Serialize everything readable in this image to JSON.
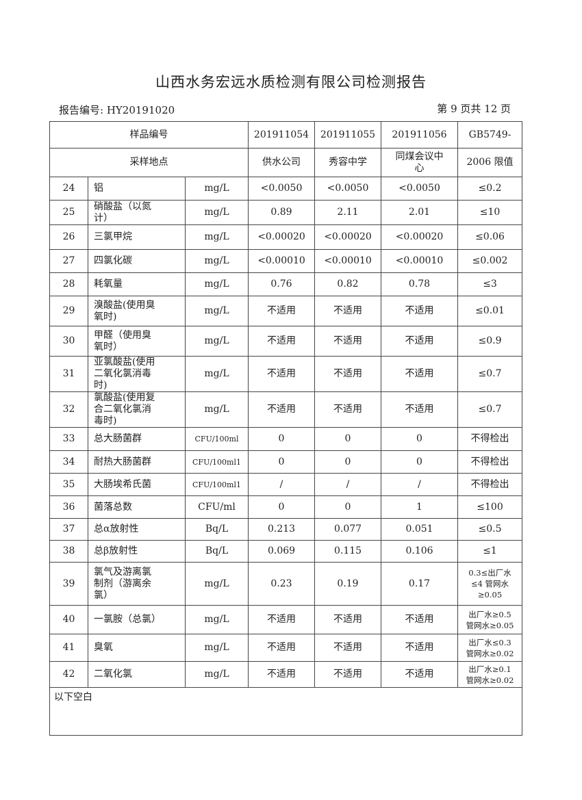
{
  "title": "山西水务宏远水质检测有限公司检测报告",
  "report_no": "报告编号: HY20191020",
  "page_info": "第 9 页共 12 页",
  "header": {
    "sample_no_label": "样品编号",
    "site_label": "采样地点",
    "samples": [
      "201911054",
      "201911055",
      "201911056"
    ],
    "sites": [
      "供水公司",
      "秀容中学",
      "同煤会议中心"
    ],
    "limit_line1": "GB5749-",
    "limit_line2": "2006 限值"
  },
  "rows": [
    {
      "no": "24",
      "item": "铝",
      "unit": "mg/L",
      "v": [
        "<0.0050",
        "<0.0050",
        "<0.0050"
      ],
      "limit": "≤0.2"
    },
    {
      "no": "25",
      "item": "硝酸盐（以氮计）",
      "unit": "mg/L",
      "v": [
        "0.89",
        "2.11",
        "2.01"
      ],
      "limit": "≤10"
    },
    {
      "no": "26",
      "item": "三氯甲烷",
      "unit": "mg/L",
      "v": [
        "<0.00020",
        "<0.00020",
        "<0.00020"
      ],
      "limit": "≤0.06"
    },
    {
      "no": "27",
      "item": "四氯化碳",
      "unit": "mg/L",
      "v": [
        "<0.00010",
        "<0.00010",
        "<0.00010"
      ],
      "limit": "≤0.002"
    },
    {
      "no": "28",
      "item": "耗氧量",
      "unit": "mg/L",
      "v": [
        "0.76",
        "0.82",
        "0.78"
      ],
      "limit": "≤3"
    },
    {
      "no": "29",
      "item": "溴酸盐(使用臭氧时)",
      "unit": "mg/L",
      "v": [
        "不适用",
        "不适用",
        "不适用"
      ],
      "limit": "≤0.01"
    },
    {
      "no": "30",
      "item": "甲醛（使用臭氧时）",
      "unit": "mg/L",
      "v": [
        "不适用",
        "不适用",
        "不适用"
      ],
      "limit": "≤0.9"
    },
    {
      "no": "31",
      "item": "亚氯酸盐(使用二氧化氯消毒时)",
      "unit": "mg/L",
      "v": [
        "不适用",
        "不适用",
        "不适用"
      ],
      "limit": "≤0.7"
    },
    {
      "no": "32",
      "item": "氯酸盐(使用复合二氧化氯消毒时)",
      "unit": "mg/L",
      "v": [
        "不适用",
        "不适用",
        "不适用"
      ],
      "limit": "≤0.7"
    },
    {
      "no": "33",
      "item": "总大肠菌群",
      "unit": "CFU/100ml",
      "v": [
        "0",
        "0",
        "0"
      ],
      "limit": "不得检出"
    },
    {
      "no": "34",
      "item": "耐热大肠菌群",
      "unit": "CFU/100ml1",
      "v": [
        "0",
        "0",
        "0"
      ],
      "limit": "不得检出"
    },
    {
      "no": "35",
      "item": "大肠埃希氏菌",
      "unit": "CFU/100ml1",
      "v": [
        "/",
        "/",
        "/"
      ],
      "limit": "不得检出"
    },
    {
      "no": "36",
      "item": "菌落总数",
      "unit": "CFU/ml",
      "v": [
        "0",
        "0",
        "1"
      ],
      "limit": "≤100"
    },
    {
      "no": "37",
      "item": "总α放射性",
      "unit": "Bq/L",
      "v": [
        "0.213",
        "0.077",
        "0.051"
      ],
      "limit": "≤0.5"
    },
    {
      "no": "38",
      "item": "总β放射性",
      "unit": "Bq/L",
      "v": [
        "0.069",
        "0.115",
        "0.106"
      ],
      "limit": "≤1"
    },
    {
      "no": "39",
      "item": "氯气及游离氯制剂（游离余氯）",
      "unit": "mg/L",
      "v": [
        "0.23",
        "0.19",
        "0.17"
      ],
      "limit": "0.3≤出厂水≤4 管网水≥0.05"
    },
    {
      "no": "40",
      "item": "一氯胺（总氯）",
      "unit": "mg/L",
      "v": [
        "不适用",
        "不适用",
        "不适用"
      ],
      "limit": "出厂水≥0.5 管网水≥0.05"
    },
    {
      "no": "41",
      "item": "臭氧",
      "unit": "mg/L",
      "v": [
        "不适用",
        "不适用",
        "不适用"
      ],
      "limit": "出厂水≤0.3 管网水≥0.02"
    },
    {
      "no": "42",
      "item": "二氧化氯",
      "unit": "mg/L",
      "v": [
        "不适用",
        "不适用",
        "不适用"
      ],
      "limit": "出厂水≥0.1 管网水≥0.02"
    }
  ],
  "footer_note": "以下空白"
}
